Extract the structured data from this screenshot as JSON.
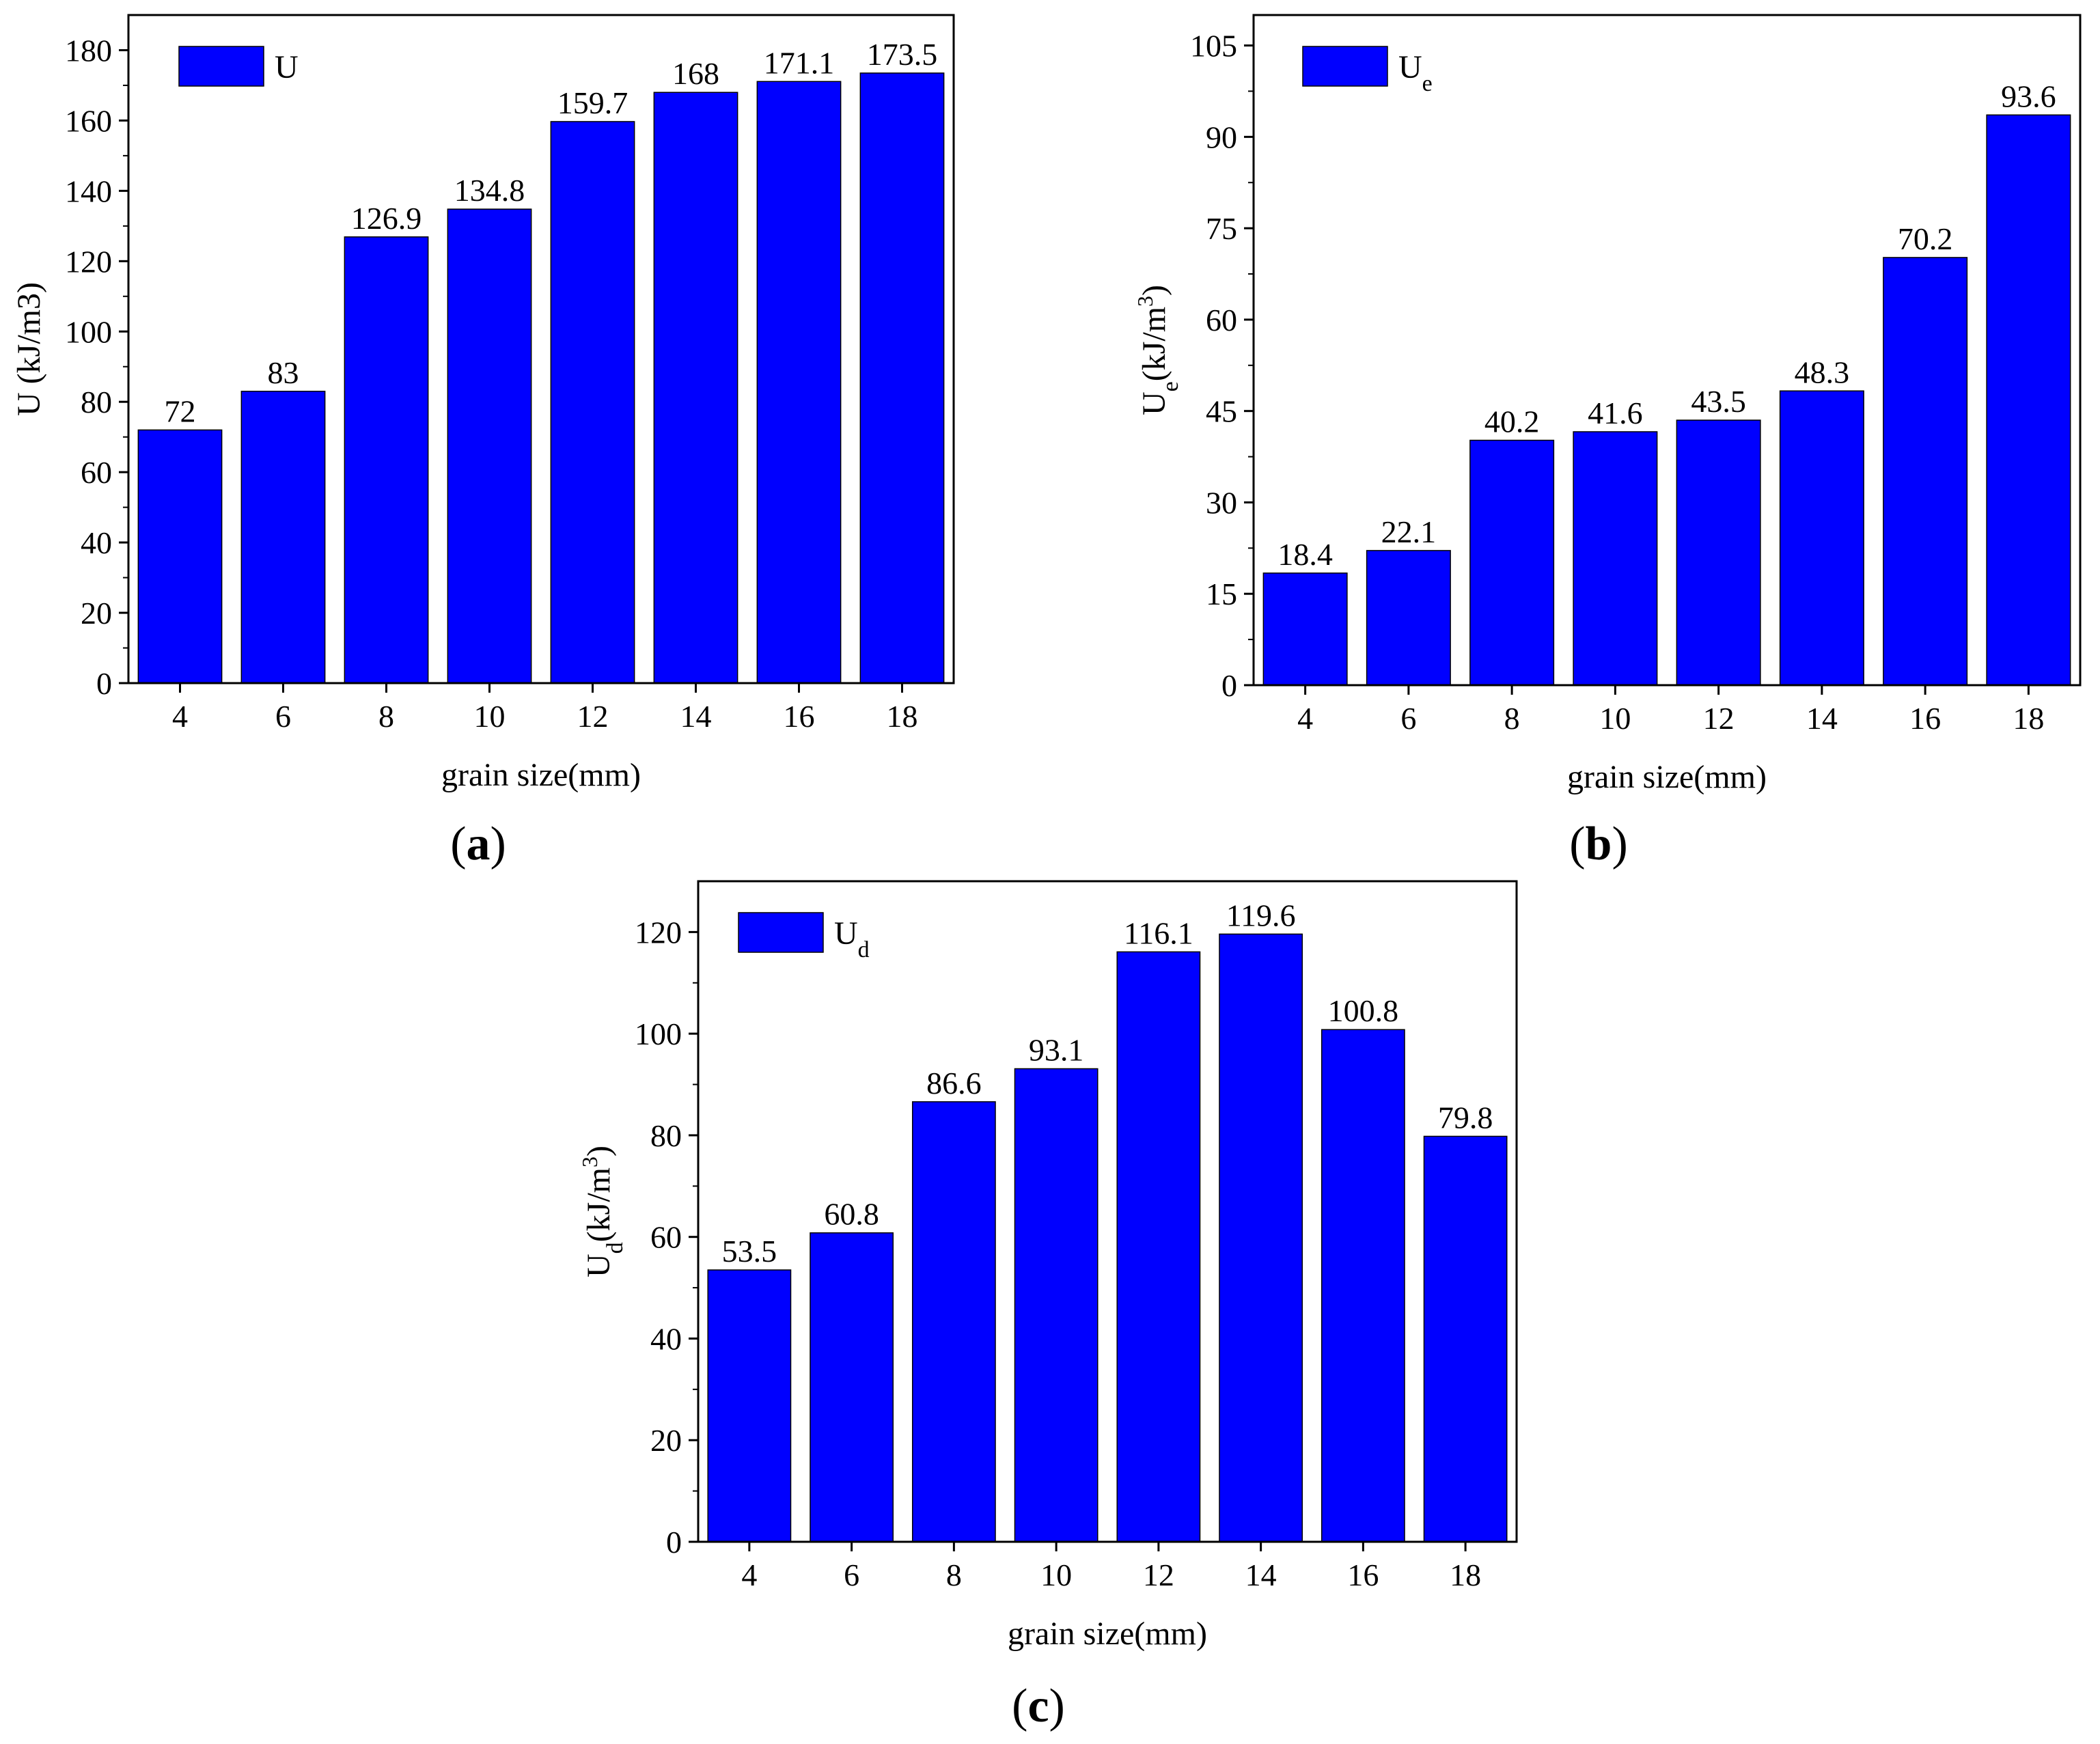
{
  "colors": {
    "bar": "#0000FF",
    "axis": "#000000",
    "background": "#FFFFFF"
  },
  "chart_data": [
    {
      "id": "a",
      "type": "bar",
      "panel_label": "(a)",
      "legend": {
        "base": "U",
        "sub": ""
      },
      "categories": [
        "4",
        "6",
        "8",
        "10",
        "12",
        "14",
        "16",
        "18"
      ],
      "values": [
        72,
        83,
        126.9,
        134.8,
        159.7,
        168,
        171.1,
        173.5
      ],
      "value_labels": [
        "72",
        "83",
        "126.9",
        "134.8",
        "159.7",
        "168",
        "171.1",
        "173.5"
      ],
      "xlabel": "grain size(mm)",
      "ylabel": {
        "base": "U (kJ/m3)",
        "sub": "",
        "rest": "",
        "sup": "",
        "tail": ""
      },
      "ylim": [
        0,
        190
      ],
      "yticks": [
        0,
        20,
        40,
        60,
        80,
        100,
        120,
        140,
        160,
        180
      ]
    },
    {
      "id": "b",
      "type": "bar",
      "panel_label": "(b)",
      "legend": {
        "base": "U",
        "sub": "e"
      },
      "categories": [
        "4",
        "6",
        "8",
        "10",
        "12",
        "14",
        "16",
        "18"
      ],
      "values": [
        18.4,
        22.1,
        40.2,
        41.6,
        43.5,
        48.3,
        70.2,
        93.6
      ],
      "value_labels": [
        "18.4",
        "22.1",
        "40.2",
        "41.6",
        "43.5",
        "48.3",
        "70.2",
        "93.6"
      ],
      "xlabel": "grain size(mm)",
      "ylabel": {
        "base": "U",
        "sub": "e",
        "rest": "(kJ/m",
        "sup": "3",
        "tail": ")"
      },
      "ylim": [
        0,
        110
      ],
      "yticks": [
        0,
        15,
        30,
        45,
        60,
        75,
        90,
        105
      ]
    },
    {
      "id": "c",
      "type": "bar",
      "panel_label": "(c)",
      "legend": {
        "base": "U",
        "sub": "d"
      },
      "categories": [
        "4",
        "6",
        "8",
        "10",
        "12",
        "14",
        "16",
        "18"
      ],
      "values": [
        53.5,
        60.8,
        86.6,
        93.1,
        116.1,
        119.6,
        100.8,
        79.8
      ],
      "value_labels": [
        "53.5",
        "60.8",
        "86.6",
        "93.1",
        "116.1",
        "119.6",
        "100.8",
        "79.8"
      ],
      "xlabel": "grain size(mm)",
      "ylabel": {
        "base": "U",
        "sub": "d",
        "rest": "(kJ/m",
        "sup": "3",
        "tail": ")"
      },
      "ylim": [
        0,
        130
      ],
      "yticks": [
        0,
        20,
        40,
        60,
        80,
        100,
        120
      ]
    }
  ]
}
